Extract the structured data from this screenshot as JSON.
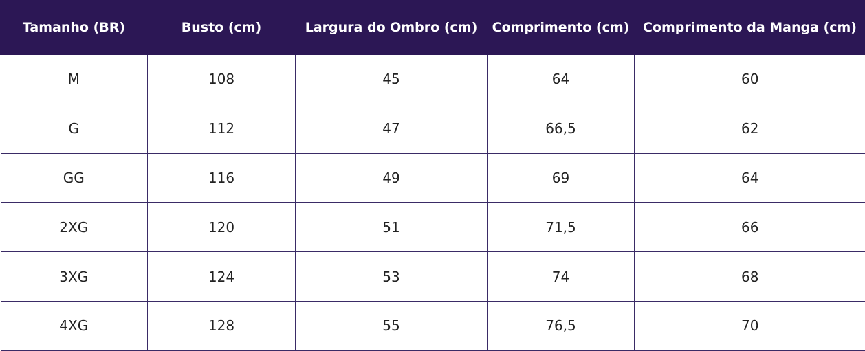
{
  "table": {
    "headers": [
      "Tamanho (BR)",
      "Busto (cm)",
      "Largura do Ombro (cm)",
      "Comprimento (cm)",
      "Comprimento da Manga (cm)"
    ],
    "rows": [
      [
        "M",
        "108",
        "45",
        "64",
        "60"
      ],
      [
        "G",
        "112",
        "47",
        "66,5",
        "62"
      ],
      [
        "GG",
        "116",
        "49",
        "69",
        "64"
      ],
      [
        "2XG",
        "120",
        "51",
        "71,5",
        "66"
      ],
      [
        "3XG",
        "124",
        "53",
        "74",
        "68"
      ],
      [
        "4XG",
        "128",
        "55",
        "76,5",
        "70"
      ]
    ],
    "colors": {
      "header_background": "#2c1755",
      "header_text": "#ffffff",
      "cell_text": "#222222",
      "grid_line": "#3a2b66"
    }
  }
}
